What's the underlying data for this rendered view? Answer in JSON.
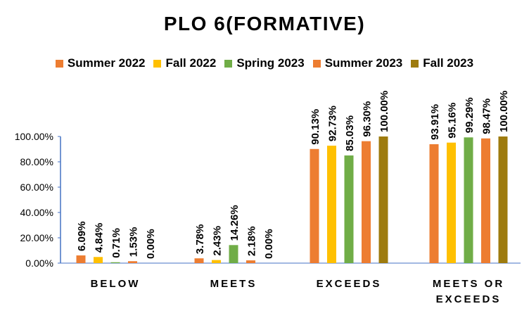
{
  "chart_data": {
    "type": "bar",
    "title": "PLO 6(FORMATIVE)",
    "categories": [
      "BELOW",
      "MEETS",
      "EXCEEDS",
      "MEETS OR EXCEEDS"
    ],
    "ylim": [
      0,
      100
    ],
    "yticks": [
      "0.00%",
      "20.00%",
      "40.00%",
      "60.00%",
      "80.00%",
      "100.00%"
    ],
    "legend_position": "top",
    "grid": false,
    "series": [
      {
        "name": "Summer 2022",
        "color": "#ED7D31",
        "values": [
          6.09,
          3.78,
          90.13,
          93.91
        ],
        "labels": [
          "6.09%",
          "3.78%",
          "90.13%",
          "93.91%"
        ]
      },
      {
        "name": "Fall 2022",
        "color": "#FFC000",
        "values": [
          4.84,
          2.43,
          92.73,
          95.16
        ],
        "labels": [
          "4.84%",
          "2.43%",
          "92.73%",
          "95.16%"
        ]
      },
      {
        "name": "Spring 2023",
        "color": "#70AD47",
        "values": [
          0.71,
          14.26,
          85.03,
          99.29
        ],
        "labels": [
          "0.71%",
          "14.26%",
          "85.03%",
          "99.29%"
        ]
      },
      {
        "name": "Summer 2023",
        "color": "#ED7D31",
        "values": [
          1.53,
          2.18,
          96.3,
          98.47
        ],
        "labels": [
          "1.53%",
          "2.18%",
          "96.30%",
          "98.47%"
        ]
      },
      {
        "name": "Fall 2023",
        "color": "#9E7B0E",
        "values": [
          0.0,
          0.0,
          100.0,
          100.0
        ],
        "labels": [
          "0.00%",
          "0.00%",
          "100.00%",
          "100.00%"
        ]
      }
    ]
  }
}
